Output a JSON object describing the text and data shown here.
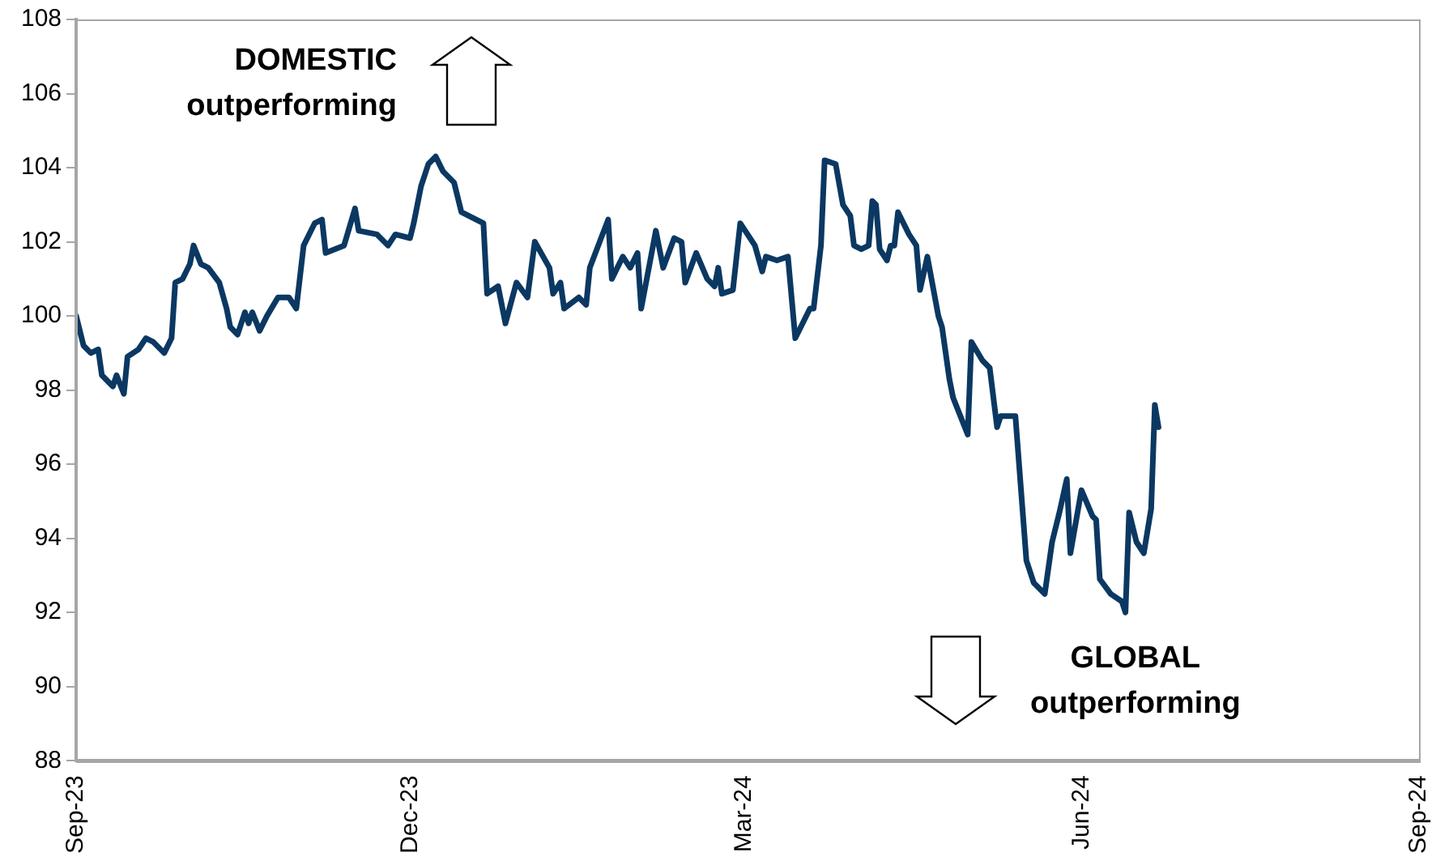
{
  "chart_data": {
    "type": "line",
    "x": [
      "2023-09-01",
      "2023-09-03",
      "2023-09-05",
      "2023-09-07",
      "2023-09-08",
      "2023-09-10",
      "2023-09-11",
      "2023-09-12",
      "2023-09-14",
      "2023-09-15",
      "2023-09-18",
      "2023-09-20",
      "2023-09-22",
      "2023-09-25",
      "2023-09-27",
      "2023-09-28",
      "2023-09-30",
      "2023-10-02",
      "2023-10-03",
      "2023-10-05",
      "2023-10-07",
      "2023-10-10",
      "2023-10-12",
      "2023-10-13",
      "2023-10-15",
      "2023-10-17",
      "2023-10-18",
      "2023-10-19",
      "2023-10-21",
      "2023-10-23",
      "2023-10-26",
      "2023-10-29",
      "2023-10-31",
      "2023-11-02",
      "2023-11-05",
      "2023-11-07",
      "2023-11-08",
      "2023-11-13",
      "2023-11-16",
      "2023-11-17",
      "2023-11-22",
      "2023-11-25",
      "2023-11-27",
      "2023-12-01",
      "2023-12-02",
      "2023-12-04",
      "2023-12-06",
      "2023-12-08",
      "2023-12-10",
      "2023-12-13",
      "2023-12-15",
      "2023-12-21",
      "2023-12-22",
      "2023-12-25",
      "2023-12-27",
      "2023-12-30",
      "2024-01-02",
      "2024-01-04",
      "2024-01-08",
      "2024-01-09",
      "2024-01-11",
      "2024-01-12",
      "2024-01-16",
      "2024-01-18",
      "2024-01-19",
      "2024-01-24",
      "2024-01-25",
      "2024-01-28",
      "2024-01-30",
      "2024-02-01",
      "2024-02-02",
      "2024-02-06",
      "2024-02-08",
      "2024-02-11",
      "2024-02-13",
      "2024-02-14",
      "2024-02-17",
      "2024-02-20",
      "2024-02-22",
      "2024-02-23",
      "2024-02-24",
      "2024-02-27",
      "2024-02-29",
      "2024-03-04",
      "2024-03-06",
      "2024-03-07",
      "2024-03-10",
      "2024-03-13",
      "2024-03-15",
      "2024-03-19",
      "2024-03-20",
      "2024-03-22",
      "2024-03-23",
      "2024-03-26",
      "2024-03-28",
      "2024-03-30",
      "2024-03-31",
      "2024-04-02",
      "2024-04-04",
      "2024-04-05",
      "2024-04-06",
      "2024-04-07",
      "2024-04-09",
      "2024-04-10",
      "2024-04-11",
      "2024-04-12",
      "2024-04-15",
      "2024-04-17",
      "2024-04-18",
      "2024-04-20",
      "2024-04-23",
      "2024-04-24",
      "2024-04-26",
      "2024-04-27",
      "2024-05-01",
      "2024-05-02",
      "2024-05-05",
      "2024-05-07",
      "2024-05-09",
      "2024-05-10",
      "2024-05-14",
      "2024-05-17",
      "2024-05-19",
      "2024-05-22",
      "2024-05-24",
      "2024-05-26",
      "2024-05-28",
      "2024-05-29",
      "2024-06-01",
      "2024-06-04",
      "2024-06-05",
      "2024-06-06",
      "2024-06-09",
      "2024-06-12",
      "2024-06-13",
      "2024-06-14",
      "2024-06-16",
      "2024-06-18",
      "2024-06-20",
      "2024-06-21",
      "2024-06-22"
    ],
    "series": [
      {
        "color": "#0b3862",
        "values": [
          100.0,
          99.2,
          99.0,
          99.1,
          98.4,
          98.2,
          98.1,
          98.4,
          97.9,
          98.9,
          99.1,
          99.4,
          99.3,
          99.0,
          99.4,
          100.9,
          101.0,
          101.4,
          101.9,
          101.4,
          101.3,
          100.9,
          100.2,
          99.7,
          99.5,
          100.1,
          99.8,
          100.1,
          99.6,
          100.0,
          100.5,
          100.5,
          100.2,
          101.9,
          102.5,
          102.6,
          101.7,
          101.9,
          102.9,
          102.3,
          102.2,
          101.9,
          102.2,
          102.1,
          102.5,
          103.5,
          104.1,
          104.3,
          103.9,
          103.6,
          102.8,
          102.5,
          100.6,
          100.8,
          99.8,
          100.9,
          100.5,
          102.0,
          101.3,
          100.6,
          100.9,
          100.2,
          100.5,
          100.3,
          101.3,
          102.6,
          101.0,
          101.6,
          101.3,
          101.7,
          100.2,
          102.3,
          101.3,
          102.1,
          102.0,
          100.9,
          101.7,
          101.0,
          100.8,
          101.3,
          100.6,
          100.7,
          102.5,
          101.9,
          101.2,
          101.6,
          101.5,
          101.6,
          99.4,
          100.2,
          100.2,
          101.9,
          104.2,
          104.1,
          103.0,
          102.7,
          101.9,
          101.8,
          101.9,
          103.1,
          103.0,
          101.8,
          101.5,
          101.9,
          101.9,
          102.8,
          102.2,
          101.9,
          100.7,
          101.6,
          100.0,
          99.7,
          98.3,
          97.8,
          96.8,
          99.3,
          98.8,
          98.6,
          97.0,
          97.3,
          97.3,
          93.4,
          92.8,
          92.5,
          93.9,
          94.7,
          95.6,
          93.6,
          95.3,
          94.6,
          94.5,
          92.9,
          92.5,
          92.3,
          92.0,
          94.7,
          93.9,
          93.6,
          94.8,
          97.6,
          97.0
        ]
      }
    ],
    "xlim": [
      "2023-09-01",
      "2024-09-01"
    ],
    "xticks": [
      {
        "value": "2023-09-01",
        "label": "Sep-23"
      },
      {
        "value": "2023-12-01",
        "label": "Dec-23"
      },
      {
        "value": "2024-03-01",
        "label": "Mar-24"
      },
      {
        "value": "2024-06-01",
        "label": "Jun-24"
      },
      {
        "value": "2024-09-01",
        "label": "Sep-24"
      }
    ],
    "ylim": [
      88,
      108
    ],
    "yticks": [
      88,
      90,
      92,
      94,
      96,
      98,
      100,
      102,
      104,
      106,
      108
    ],
    "grid": false,
    "legend": false,
    "annotations": [
      "DOMESTIC\noutperforming",
      "GLOBAL\noutperforming"
    ]
  }
}
